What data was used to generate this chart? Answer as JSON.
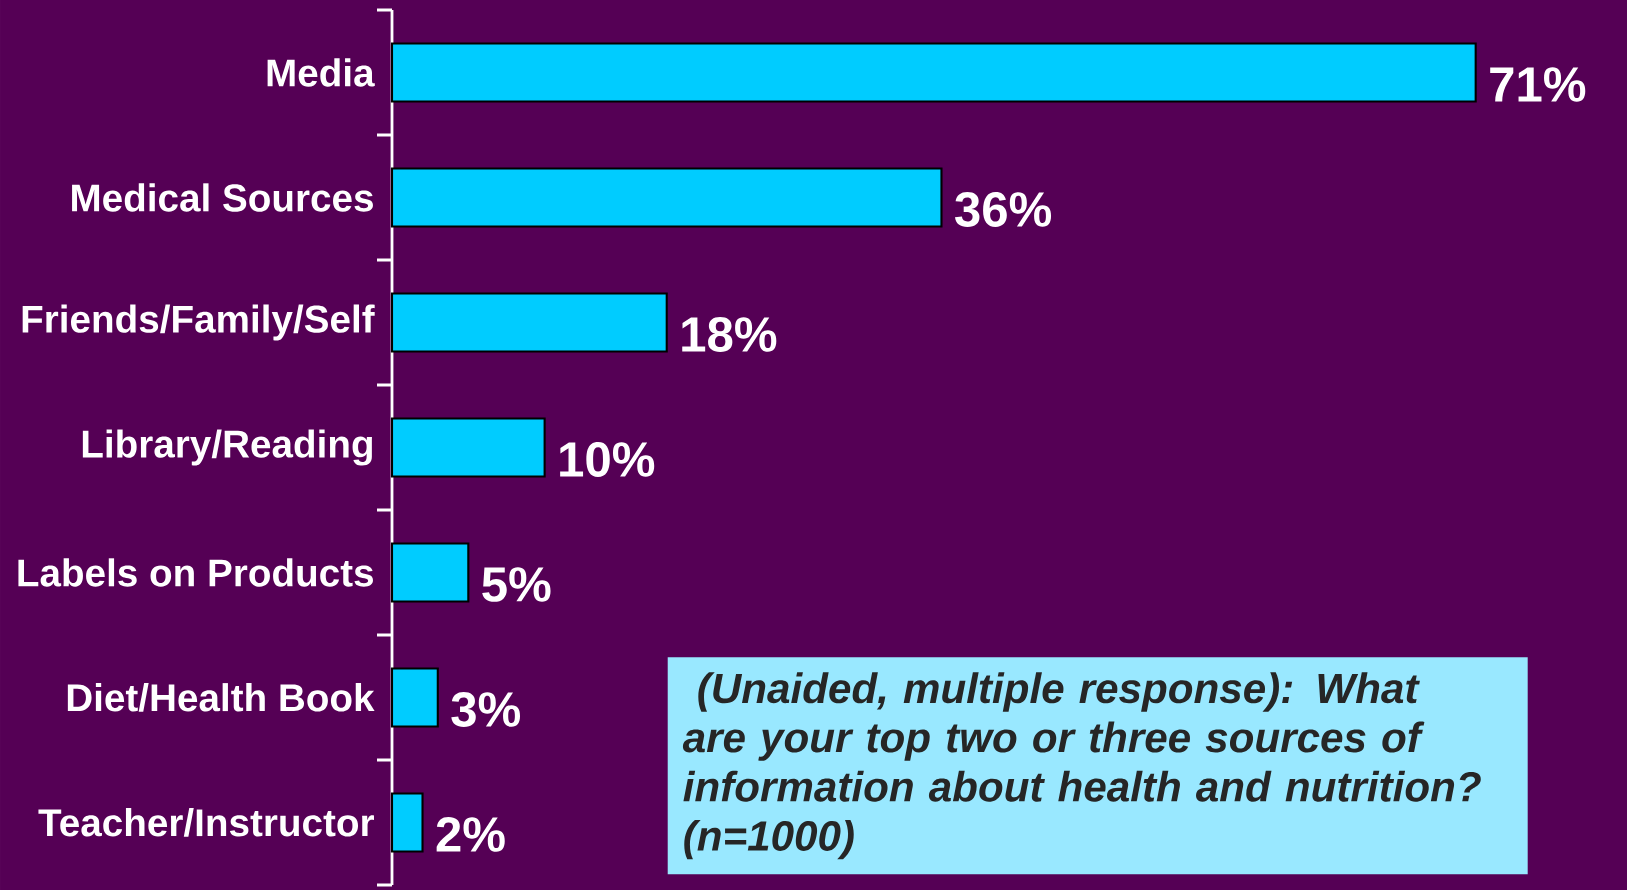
{
  "chart_data": {
    "type": "bar",
    "orientation": "horizontal",
    "tick_labels": "y",
    "categories": [
      "Media",
      "Medical Sources",
      "Friends/Family/Self",
      "Library/Reading",
      "Labels on Products",
      "Diet/Health Book",
      "Teacher/Instructor"
    ],
    "values": [
      71,
      36,
      18,
      10,
      5,
      3,
      2
    ],
    "value_labels": [
      "71%",
      "36%",
      "18%",
      "10%",
      "5%",
      "3%",
      "2%"
    ],
    "color": "#00ccff",
    "annotations": [
      " (Unaided, multiple response): What are your top two or three sources of information about health and nutrition? (n=1000)"
    ]
  }
}
